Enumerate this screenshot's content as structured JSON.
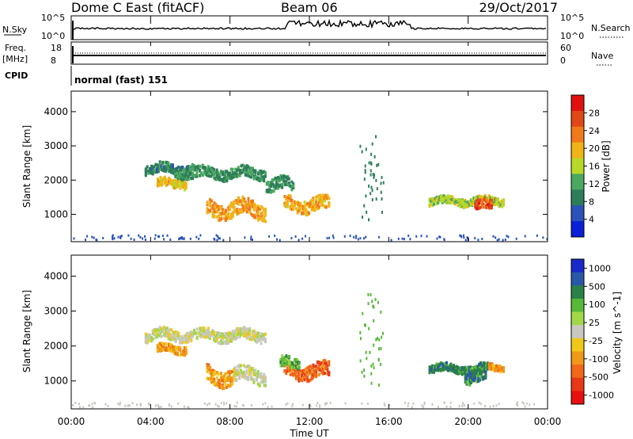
{
  "header": {
    "station": "Dome C East (fitACF)",
    "beam": "Beam 06",
    "date": "29/Oct/2017"
  },
  "status_panels": {
    "nsky_label": "N.Sky",
    "nsky_ticks": [
      "10^5",
      "10^0"
    ],
    "nsearch_label": "N.Search",
    "freq_label": "Freq.",
    "freq_unit": "[MHz]",
    "freq_ticks": [
      "18",
      "8"
    ],
    "nave_label": "Nave",
    "nave_ticks": [
      "60",
      "0"
    ],
    "cpid_label": "CPID",
    "cpid_value": "normal (fast) 151"
  },
  "colors": {
    "power_scale": [
      "#0a20d8",
      "#2a52b8",
      "#2e7d5a",
      "#4aa860",
      "#b8d828",
      "#f0b418",
      "#f07a1a",
      "#e04818",
      "#e01010"
    ],
    "velocity_scale": [
      "#1a28c8",
      "#2a58a8",
      "#2a8048",
      "#58b838",
      "#a0d848",
      "#c8c8c0",
      "#f0c818",
      "#f09818",
      "#f06818",
      "#e83818",
      "#e81010"
    ]
  },
  "chart_data": [
    {
      "type": "heatmap",
      "panel": "power",
      "xlabel": "Time UT",
      "ylabel": "Slant Range [km]",
      "x_ticks": [
        "00:00",
        "04:00",
        "08:00",
        "12:00",
        "16:00",
        "20:00",
        "00:00"
      ],
      "x_range_hours": [
        0,
        24
      ],
      "y_ticks": [
        1000,
        2000,
        3000,
        4000
      ],
      "ylim": [
        200,
        4600
      ],
      "colorbar": {
        "label": "Power [dB]",
        "ticks": [
          "4",
          "8",
          "12",
          "16",
          "20",
          "24",
          "28"
        ],
        "range": [
          0,
          30
        ]
      },
      "echo_regions": [
        {
          "t_start": 3.7,
          "t_end": 6.2,
          "r_center": 2320,
          "r_halfwidth": 140,
          "level": 8
        },
        {
          "t_start": 5.2,
          "t_end": 9.8,
          "r_center": 2200,
          "r_halfwidth": 150,
          "level": 9
        },
        {
          "t_start": 4.3,
          "t_end": 5.8,
          "r_center": 1900,
          "r_halfwidth": 120,
          "level": 18
        },
        {
          "t_start": 6.8,
          "t_end": 9.8,
          "r_center": 1150,
          "r_halfwidth": 230,
          "level": 20
        },
        {
          "t_start": 10.7,
          "t_end": 13.0,
          "r_center": 1280,
          "r_halfwidth": 200,
          "level": 19
        },
        {
          "t_start": 9.8,
          "t_end": 11.2,
          "r_center": 1850,
          "r_halfwidth": 180,
          "level": 10
        },
        {
          "t_start": 18.0,
          "t_end": 21.8,
          "r_center": 1380,
          "r_halfwidth": 110,
          "level": 15
        },
        {
          "t_start": 20.3,
          "t_end": 21.2,
          "r_center": 1250,
          "r_halfwidth": 130,
          "level": 26
        }
      ]
    },
    {
      "type": "heatmap",
      "panel": "velocity",
      "xlabel": "Time UT",
      "ylabel": "Slant Range [km]",
      "x_ticks": [
        "00:00",
        "04:00",
        "08:00",
        "12:00",
        "16:00",
        "20:00",
        "00:00"
      ],
      "x_range_hours": [
        0,
        24
      ],
      "y_ticks": [
        1000,
        2000,
        3000,
        4000
      ],
      "ylim": [
        200,
        4600
      ],
      "colorbar": {
        "label": "Velocity [m s^-1]",
        "ticks": [
          "1000",
          "500",
          "100",
          "25",
          "-25",
          "-100",
          "-500",
          "-1000"
        ]
      },
      "echo_regions": [
        {
          "t_start": 3.7,
          "t_end": 9.8,
          "r_center": 2300,
          "r_halfwidth": 150,
          "level": 5
        },
        {
          "t_start": 4.3,
          "t_end": 5.8,
          "r_center": 1900,
          "r_halfwidth": 120,
          "level": 7
        },
        {
          "t_start": 6.8,
          "t_end": 8.2,
          "r_center": 1150,
          "r_halfwidth": 230,
          "level": 7
        },
        {
          "t_start": 8.2,
          "t_end": 9.8,
          "r_center": 1150,
          "r_halfwidth": 200,
          "level": 5
        },
        {
          "t_start": 10.7,
          "t_end": 13.0,
          "r_center": 1280,
          "r_halfwidth": 200,
          "level": 8
        },
        {
          "t_start": 10.5,
          "t_end": 11.5,
          "r_center": 1500,
          "r_halfwidth": 150,
          "level": 3
        },
        {
          "t_start": 18.0,
          "t_end": 21.0,
          "r_center": 1350,
          "r_halfwidth": 110,
          "level": 2
        },
        {
          "t_start": 19.8,
          "t_end": 20.9,
          "r_center": 1100,
          "r_halfwidth": 160,
          "level": 2
        },
        {
          "t_start": 21.0,
          "t_end": 21.8,
          "r_center": 1380,
          "r_halfwidth": 90,
          "level": 7
        }
      ]
    }
  ]
}
